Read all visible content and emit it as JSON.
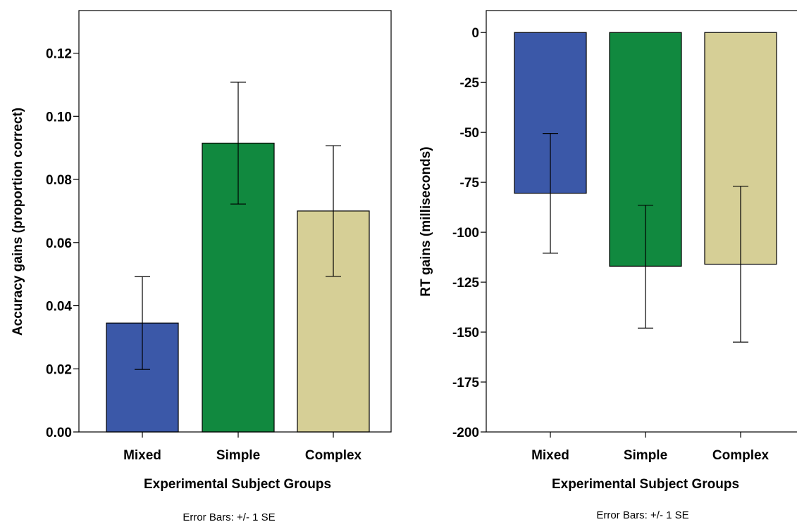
{
  "chart_data": [
    {
      "type": "bar",
      "categories": [
        "Mixed",
        "Simple",
        "Complex"
      ],
      "values": [
        0.0345,
        0.0915,
        0.07
      ],
      "error_low": [
        0.0198,
        0.0722,
        0.0493
      ],
      "error_high": [
        0.0492,
        0.1108,
        0.0907
      ],
      "colors": [
        "#3b58a8",
        "#11893f",
        "#d6cf96"
      ],
      "title": "",
      "xlabel": "Experimental Subject Groups",
      "ylabel": "Accuracy gains (proportion correct)",
      "ylim": [
        0,
        0.1335
      ],
      "yticks": [
        0.0,
        0.02,
        0.04,
        0.06,
        0.08,
        0.1,
        0.12
      ],
      "ytick_labels": [
        "0.00",
        "0.02",
        "0.04",
        "0.06",
        "0.08",
        "0.10",
        "0.12"
      ],
      "note": "Error Bars: +/- 1 SE",
      "grid": false
    },
    {
      "type": "bar",
      "categories": [
        "Mixed",
        "Simple",
        "Complex"
      ],
      "values": [
        -80.5,
        -117,
        -116
      ],
      "error_low": [
        -110.5,
        -148,
        -155
      ],
      "error_high": [
        -50.5,
        -86.5,
        -77
      ],
      "colors": [
        "#3b58a8",
        "#11893f",
        "#d6cf96"
      ],
      "title": "",
      "xlabel": "Experimental Subject Groups",
      "ylabel": "RT gains (milliseconds)",
      "ylim": [
        -200,
        11
      ],
      "yticks": [
        0,
        -25,
        -50,
        -75,
        -100,
        -125,
        -150,
        -175,
        -200
      ],
      "ytick_labels": [
        "0",
        "-25",
        "-50",
        "-75",
        "-100",
        "-125",
        "-150",
        "-175",
        "-200"
      ],
      "note": "Error Bars: +/- 1 SE",
      "grid": false
    }
  ]
}
